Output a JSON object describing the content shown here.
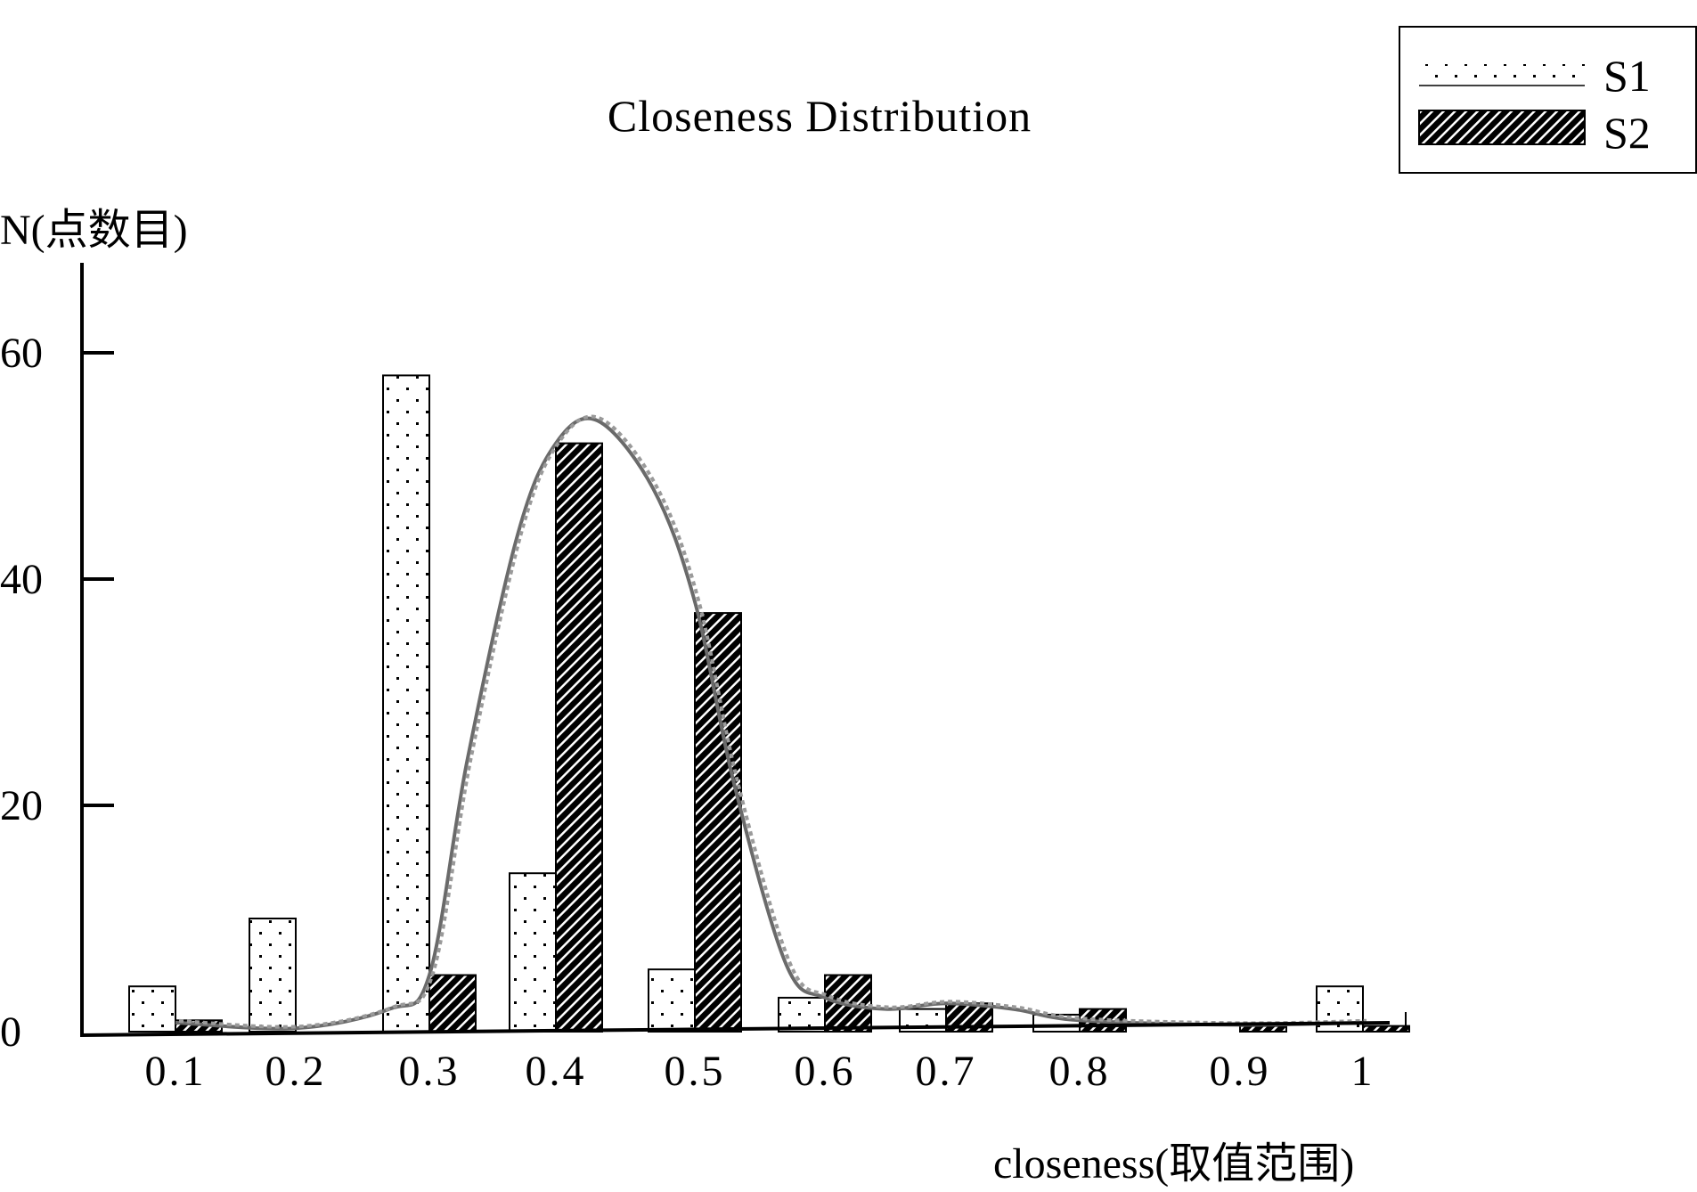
{
  "chart_data": {
    "type": "bar",
    "title": "Closeness Distribution",
    "xlabel": "closeness(取值范围)",
    "ylabel": "N(点数目)",
    "ylim": [
      0,
      68
    ],
    "yticks": [
      0,
      20,
      40,
      60
    ],
    "categories": [
      "0.1",
      "0.2",
      "0.3",
      "0.4",
      "0.5",
      "0.6",
      "0.7",
      "0.8",
      "0.9",
      "1"
    ],
    "series": [
      {
        "name": "S1",
        "pattern": "dots",
        "values": [
          4,
          10,
          58,
          14,
          5.5,
          3,
          2,
          1.5,
          0,
          4
        ]
      },
      {
        "name": "S2",
        "pattern": "hatch",
        "values": [
          1,
          0,
          5,
          52,
          37,
          5,
          2.5,
          2,
          0.5,
          0.5
        ]
      }
    ],
    "smooth_curves": [
      {
        "style": "solid-gray",
        "x": [
          0.1,
          0.2,
          0.27,
          0.3,
          0.33,
          0.37,
          0.4,
          0.43,
          0.47,
          0.5,
          0.53,
          0.57,
          0.6,
          0.65,
          0.7,
          0.75,
          0.8,
          0.9,
          1.0
        ],
        "y": [
          0.8,
          0.3,
          2,
          5,
          24,
          44,
          52,
          54,
          48,
          38,
          22,
          6,
          3,
          2,
          2.5,
          2,
          1,
          0.6,
          0.8
        ]
      },
      {
        "style": "dotted-gray",
        "x": [
          0.1,
          0.2,
          0.27,
          0.3,
          0.33,
          0.37,
          0.4,
          0.43,
          0.47,
          0.5,
          0.53,
          0.57,
          0.6,
          0.65,
          0.7,
          0.75,
          0.8,
          0.9,
          1.0
        ],
        "y": [
          0.8,
          0.3,
          2,
          5,
          24,
          44,
          52,
          54,
          48,
          38,
          22,
          6,
          3,
          2,
          2.5,
          2,
          1,
          0.6,
          0.8
        ]
      }
    ],
    "legend": {
      "position": "top-right",
      "entries": [
        "S1",
        "S2"
      ]
    },
    "grid": false,
    "colors": {
      "bar_outline": "#000000",
      "curve": "#707070",
      "background": "#ffffff"
    }
  }
}
